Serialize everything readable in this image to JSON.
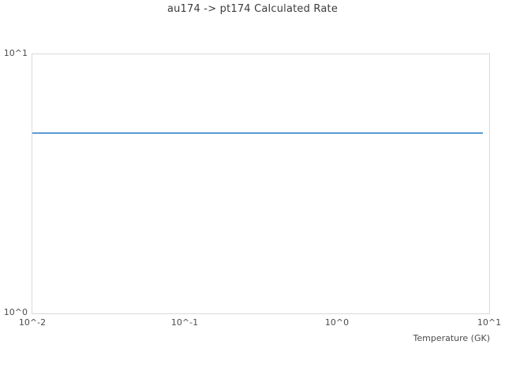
{
  "chart_data": {
    "type": "line",
    "title": "au174 -> pt174 Calculated Rate",
    "xlabel": "Temperature (GK)",
    "ylabel": "",
    "x_scale": "log",
    "y_scale": "log",
    "xlim": [
      0.01,
      10
    ],
    "ylim": [
      1,
      10
    ],
    "x_tick_labels": [
      "10^-2",
      "10^-1",
      "10^0",
      "10^1"
    ],
    "y_tick_labels": [
      "10^1",
      "10^0"
    ],
    "grid": false,
    "legend": "none",
    "series": [
      {
        "name": "calculated-rate",
        "color": "#5b9bd5",
        "x": [
          0.01,
          9.1
        ],
        "y": [
          4.95,
          4.95
        ]
      }
    ]
  },
  "colors": {
    "background": "#ffffff",
    "plot_border": "#d9d9d9",
    "title_text": "#3c3c3c",
    "tick_text": "#4c4c4c",
    "line": "#5b9bd5"
  }
}
